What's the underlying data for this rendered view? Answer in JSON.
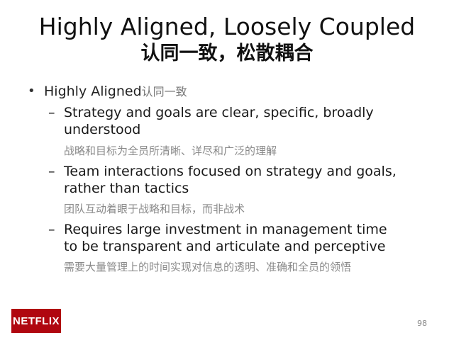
{
  "slide": {
    "title_en": "Highly Aligned, Loosely Coupled",
    "title_zh": "认同一致，松散耦合",
    "bullet": {
      "text_en": "Highly Aligned",
      "text_zh": "认同一致"
    },
    "sub_points": [
      {
        "line1": "Strategy and goals are clear, specific, broadly",
        "line2": "understood",
        "zh": "战略和目标为全员所清晰、详尽和广泛的理解"
      },
      {
        "line1": "Team interactions focused on strategy and goals,",
        "line2": "rather than tactics",
        "zh": "团队互动着眼于战略和目标，而非战术"
      },
      {
        "line1": "Requires large investment in management time",
        "line2": "to be transparent and articulate and perceptive",
        "zh": "需要大量管理上的时间实现对信息的透明、准确和全员的领悟"
      }
    ],
    "logo_text": "NETFLIX",
    "page_number": "98"
  }
}
